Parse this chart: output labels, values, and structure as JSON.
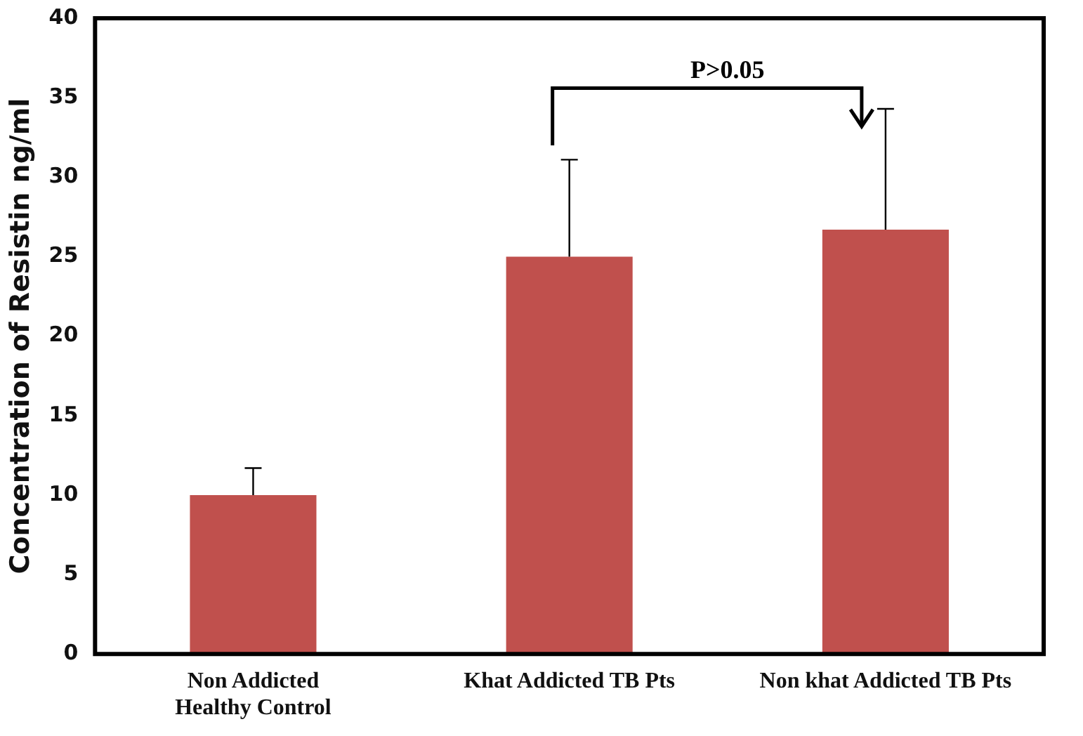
{
  "chart_data": {
    "type": "bar",
    "ylabel": "Concentration of Resistin ng/ml",
    "categories": [
      "Non Addicted\nHealthy Control",
      "Khat Addicted TB Pts",
      "Non khat Addicted TB Pts"
    ],
    "values": [
      10,
      25,
      26.7
    ],
    "color": "#c0504d",
    "errors": [
      [
        10,
        11.7
      ],
      [
        25,
        31.1
      ],
      [
        26.7,
        34.3
      ]
    ],
    "ylim": [
      0,
      40
    ],
    "yticks": [
      0,
      5,
      10,
      15,
      20,
      25,
      30,
      35,
      40
    ],
    "grid": false,
    "legend": false,
    "annotations": [
      "P>0.05"
    ]
  }
}
